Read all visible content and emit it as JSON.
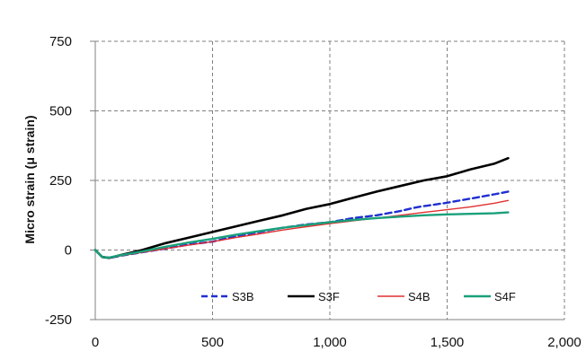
{
  "chart_data": {
    "type": "line",
    "title": "",
    "xlabel": "",
    "ylabel": "Micro strain (μ strain)",
    "xlim": [
      0,
      2000
    ],
    "ylim": [
      -250,
      750
    ],
    "x_ticks": [
      0,
      500,
      1000,
      1500,
      2000
    ],
    "x_tick_labels": [
      "0",
      "500",
      "1,000",
      "1,500",
      "2,000"
    ],
    "y_ticks": [
      -250,
      0,
      250,
      500,
      750
    ],
    "y_tick_labels": [
      "-250",
      "0",
      "250",
      "500",
      "750"
    ],
    "grid": true,
    "legend_position": "bottom-right",
    "series": [
      {
        "name": "S3B",
        "color": "#1f2fd0",
        "style": "dashed",
        "x": [
          0,
          30,
          60,
          100,
          200,
          300,
          400,
          500,
          600,
          700,
          800,
          900,
          1000,
          1100,
          1200,
          1300,
          1350,
          1380,
          1420,
          1500,
          1600,
          1700,
          1760
        ],
        "y": [
          0,
          -25,
          -28,
          -22,
          -8,
          5,
          20,
          30,
          50,
          65,
          80,
          92,
          100,
          115,
          125,
          140,
          150,
          155,
          160,
          170,
          185,
          200,
          210
        ]
      },
      {
        "name": "S3F",
        "color": "#000000",
        "style": "solid",
        "x": [
          0,
          30,
          60,
          100,
          200,
          300,
          400,
          500,
          600,
          700,
          800,
          900,
          1000,
          1100,
          1200,
          1300,
          1400,
          1500,
          1600,
          1700,
          1760
        ],
        "y": [
          0,
          -25,
          -28,
          -20,
          0,
          25,
          45,
          65,
          85,
          105,
          125,
          148,
          165,
          188,
          210,
          230,
          250,
          265,
          290,
          310,
          330
        ]
      },
      {
        "name": "S4B",
        "color": "#e03030",
        "style": "solid",
        "x": [
          0,
          30,
          60,
          100,
          200,
          300,
          400,
          500,
          600,
          700,
          800,
          900,
          1000,
          1100,
          1200,
          1300,
          1400,
          1500,
          1600,
          1700,
          1760
        ],
        "y": [
          0,
          -25,
          -27,
          -22,
          -8,
          5,
          18,
          30,
          45,
          58,
          72,
          84,
          95,
          105,
          115,
          125,
          135,
          145,
          155,
          168,
          178
        ]
      },
      {
        "name": "S4F",
        "color": "#1aa07a",
        "style": "solid",
        "x": [
          0,
          30,
          60,
          100,
          200,
          300,
          400,
          500,
          600,
          700,
          800,
          900,
          1000,
          1100,
          1200,
          1300,
          1400,
          1500,
          1600,
          1700,
          1760
        ],
        "y": [
          0,
          -25,
          -27,
          -20,
          -5,
          12,
          27,
          40,
          55,
          68,
          80,
          90,
          100,
          108,
          115,
          120,
          125,
          128,
          130,
          132,
          135
        ]
      }
    ]
  }
}
